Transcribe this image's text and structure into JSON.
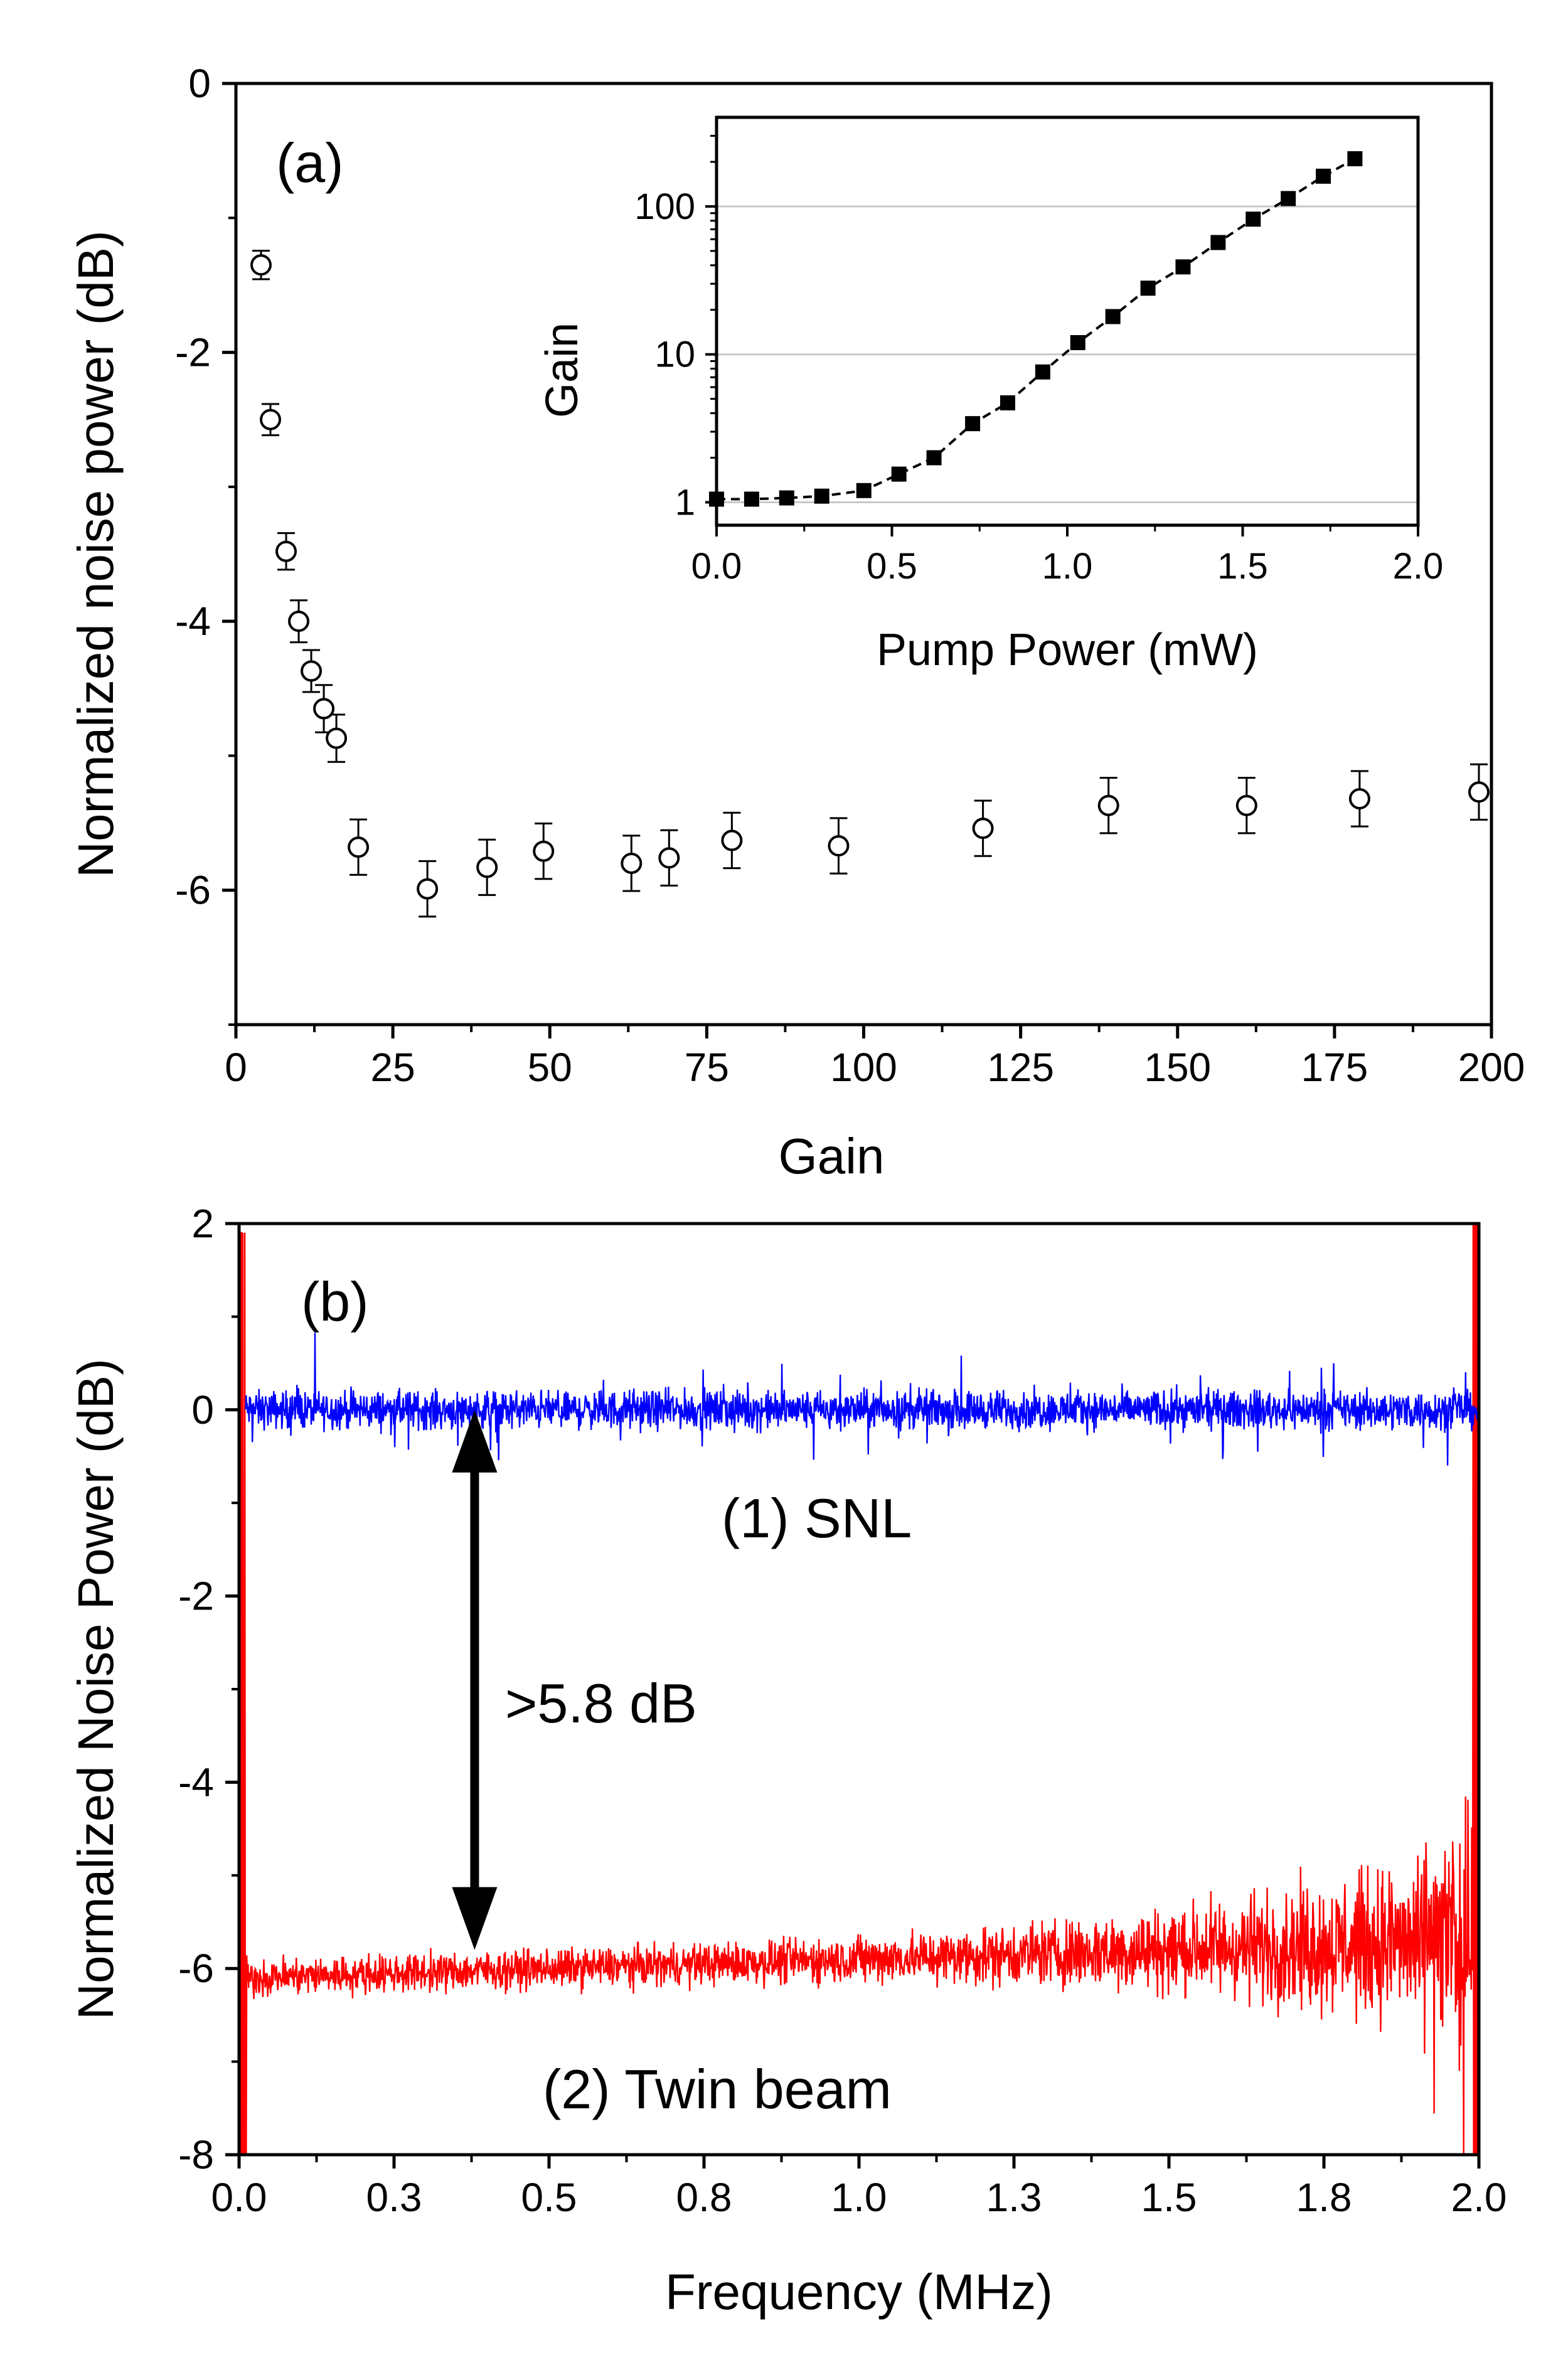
{
  "chart_data": [
    {
      "id": "panel_a",
      "type": "scatter",
      "panel_label": "(a)",
      "xlabel": "Gain",
      "ylabel": "Normalized noise power (dB)",
      "xlim": [
        0,
        200
      ],
      "ylim": [
        -7,
        0
      ],
      "xticks": [
        "0",
        "25",
        "50",
        "75",
        "100",
        "125",
        "150",
        "175",
        "200"
      ],
      "yticks": [
        "0",
        "-2",
        "-4",
        "-6"
      ],
      "marker": "open-circle",
      "points": [
        {
          "x": 4,
          "y": -1.35,
          "err": 0.05
        },
        {
          "x": 5.5,
          "y": -2.5,
          "err": 0.06
        },
        {
          "x": 8,
          "y": -3.48,
          "err": 0.08
        },
        {
          "x": 10,
          "y": -4.0,
          "err": 0.1
        },
        {
          "x": 12,
          "y": -4.37,
          "err": 0.1
        },
        {
          "x": 14,
          "y": -4.65,
          "err": 0.12
        },
        {
          "x": 16,
          "y": -4.87,
          "err": 0.12
        },
        {
          "x": 19.5,
          "y": -5.68,
          "err": 0.15
        },
        {
          "x": 30.5,
          "y": -5.99,
          "err": 0.15
        },
        {
          "x": 40,
          "y": -5.83,
          "err": 0.15
        },
        {
          "x": 49,
          "y": -5.71,
          "err": 0.15
        },
        {
          "x": 63,
          "y": -5.8,
          "err": 0.15
        },
        {
          "x": 69,
          "y": -5.76,
          "err": 0.15
        },
        {
          "x": 79,
          "y": -5.63,
          "err": 0.15
        },
        {
          "x": 96,
          "y": -5.67,
          "err": 0.15
        },
        {
          "x": 119,
          "y": -5.54,
          "err": 0.15
        },
        {
          "x": 139,
          "y": -5.37,
          "err": 0.15
        },
        {
          "x": 161,
          "y": -5.37,
          "err": 0.15
        },
        {
          "x": 179,
          "y": -5.32,
          "err": 0.15
        },
        {
          "x": 198,
          "y": -5.27,
          "err": 0.15
        }
      ],
      "inset": {
        "type": "line",
        "xlabel": "Pump Power (mW)",
        "ylabel": "Gain",
        "xlim": [
          0,
          2
        ],
        "ylim": [
          0.7,
          400
        ],
        "yscale": "log",
        "xticks": [
          "0.0",
          "0.5",
          "1.0",
          "1.5",
          "2.0"
        ],
        "yticks": [
          "1",
          "10",
          "100"
        ],
        "grid": "horizontal",
        "marker": "filled-square",
        "line_style": "dashed",
        "points": [
          {
            "x": 0.0,
            "y": 1.05
          },
          {
            "x": 0.1,
            "y": 1.05
          },
          {
            "x": 0.2,
            "y": 1.07
          },
          {
            "x": 0.3,
            "y": 1.1
          },
          {
            "x": 0.42,
            "y": 1.2
          },
          {
            "x": 0.52,
            "y": 1.55
          },
          {
            "x": 0.62,
            "y": 2.0
          },
          {
            "x": 0.73,
            "y": 3.4
          },
          {
            "x": 0.83,
            "y": 4.7
          },
          {
            "x": 0.93,
            "y": 7.6
          },
          {
            "x": 1.03,
            "y": 12
          },
          {
            "x": 1.13,
            "y": 18
          },
          {
            "x": 1.23,
            "y": 28
          },
          {
            "x": 1.33,
            "y": 39
          },
          {
            "x": 1.43,
            "y": 57
          },
          {
            "x": 1.53,
            "y": 82
          },
          {
            "x": 1.63,
            "y": 113
          },
          {
            "x": 1.73,
            "y": 160
          },
          {
            "x": 1.82,
            "y": 210
          }
        ]
      }
    },
    {
      "id": "panel_b",
      "type": "line",
      "panel_label": "(b)",
      "xlabel": "Frequency (MHz)",
      "ylabel": "Normalized Noise Power (dB)",
      "xlim": [
        0,
        2
      ],
      "ylim": [
        -8,
        2
      ],
      "xticks": [
        "0.0",
        "0.3",
        "0.5",
        "0.8",
        "1.0",
        "1.3",
        "1.5",
        "1.8",
        "2.0"
      ],
      "yticks": [
        "2",
        "0",
        "-2",
        "-4",
        "-6",
        "-8"
      ],
      "series": [
        {
          "name": "(1) SNL",
          "color": "#0000ff",
          "mean": 0.0,
          "noise_amplitude": 0.3,
          "x_range": [
            0.01,
            2.0
          ]
        },
        {
          "name": "(2) Twin beam",
          "color": "#ff0000",
          "mean_start": -6.1,
          "mean_end": -5.7,
          "noise_amplitude_start": 0.3,
          "noise_amplitude_end": 1.5,
          "x_range": [
            0.0,
            2.0
          ]
        }
      ],
      "annotation": {
        "text": ">5.8 dB",
        "x": 0.38,
        "y_from": 0.0,
        "y_to": -5.8
      }
    }
  ]
}
